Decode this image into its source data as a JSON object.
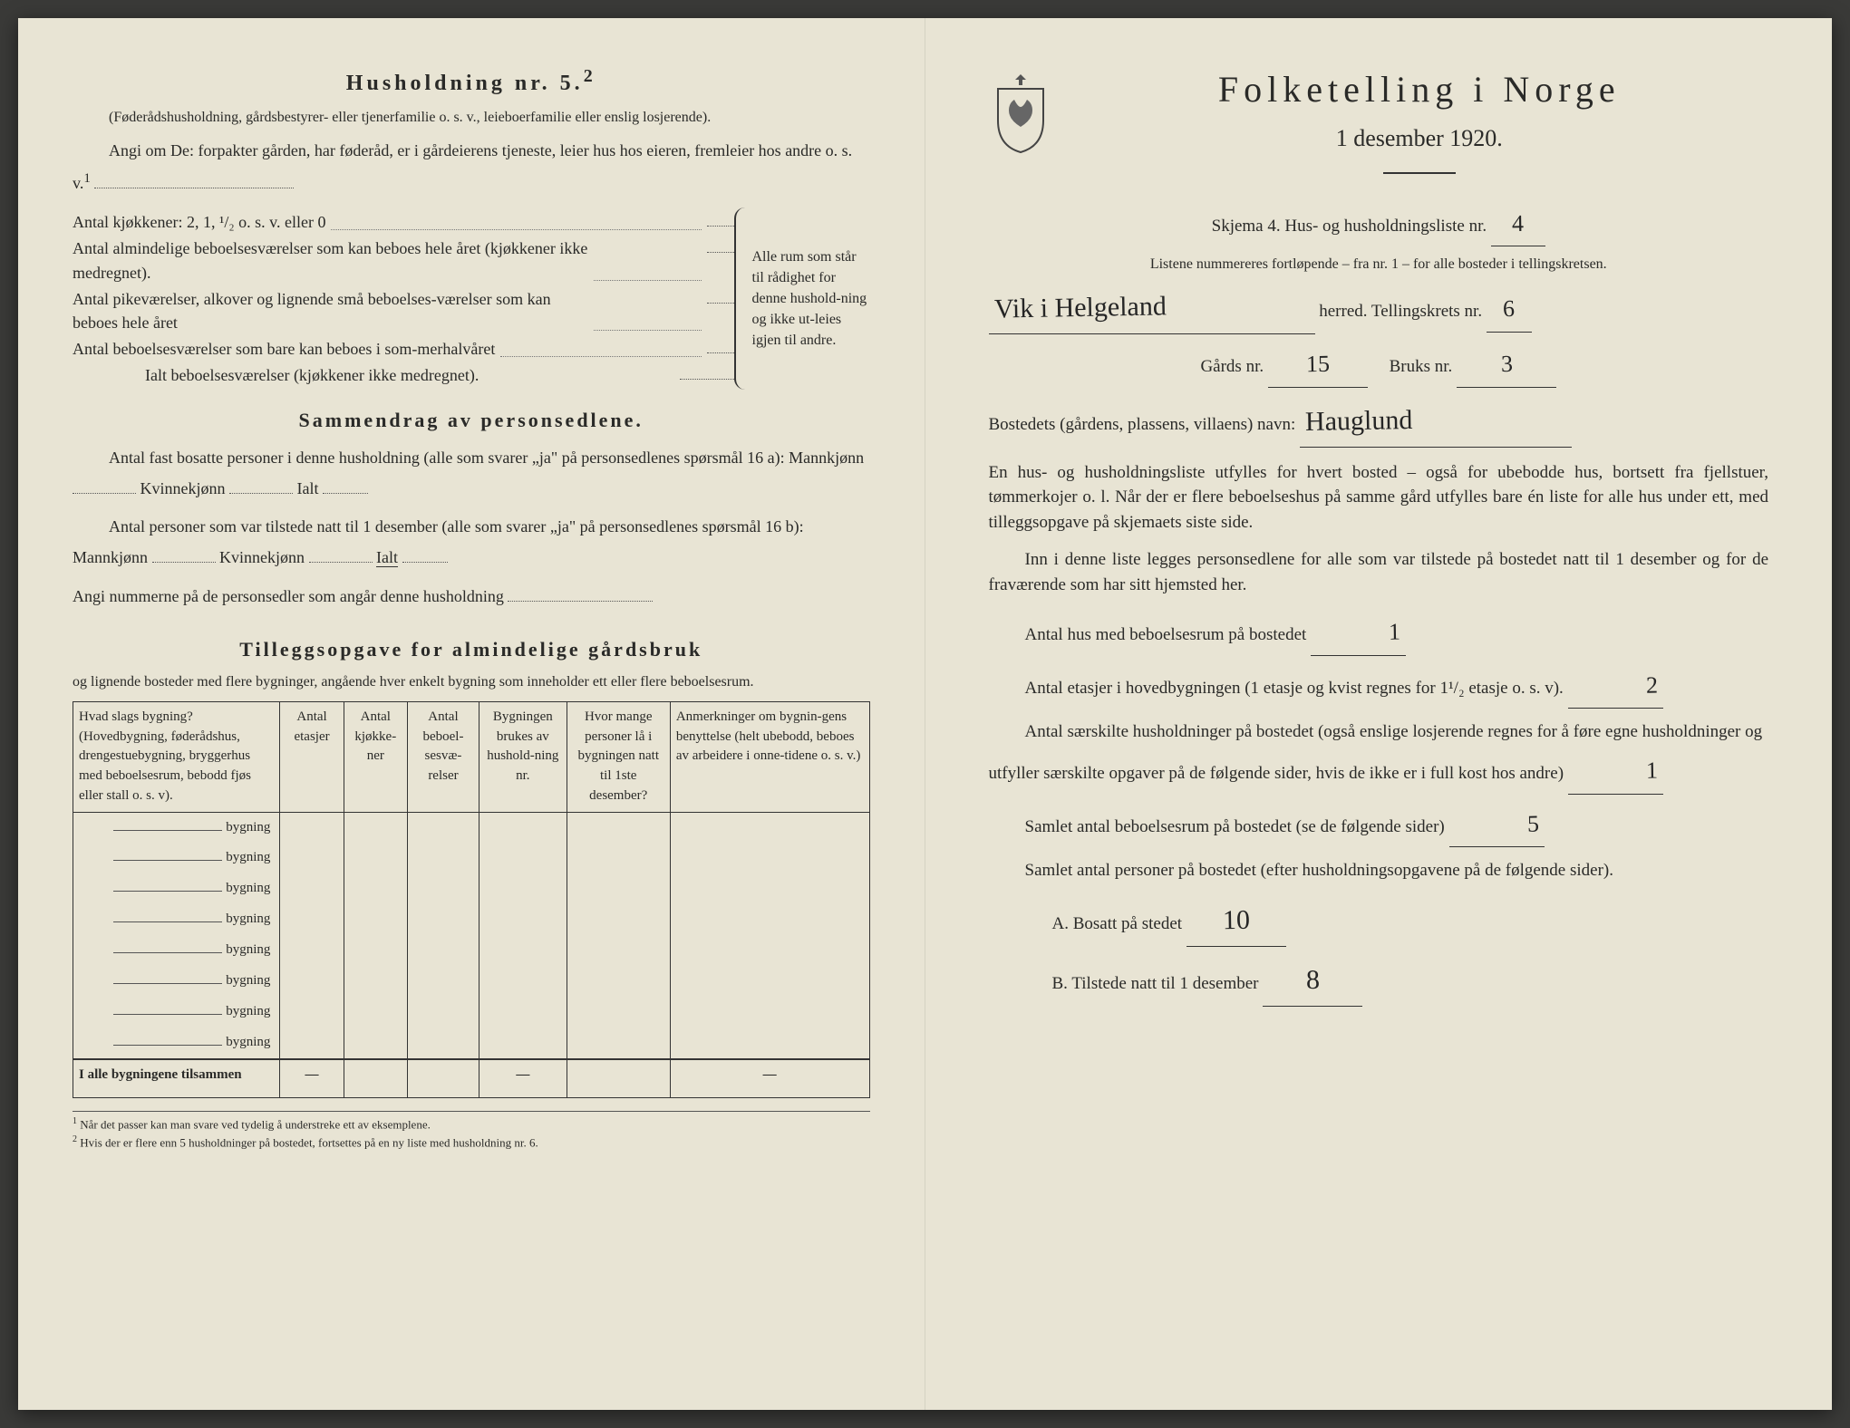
{
  "left": {
    "household_heading": "Husholdning nr. 5.",
    "household_sup": "2",
    "household_note": "(Føderådshusholdning, gårdsbestyrer- eller tjenerfamilie o. s. v., leieboerfamilie eller enslig losjerende).",
    "angi_line": "Angi om De: forpakter gården, har føderåd, er i gårdeierens tjeneste, leier hus hos eieren, fremleier hos andre o. s. v.",
    "angi_sup": "1",
    "brace_items": [
      "Antal kjøkkener: 2, 1, ¹/₂ o. s. v. eller 0",
      "Antal almindelige beboelsesværelser som kan beboes hele året (kjøkkener ikke medregnet).",
      "Antal pikeværelser, alkover og lignende små beboelses-værelser som kan beboes hele året",
      "Antal beboelsesværelser som bare kan beboes i som-merhalvåret",
      "Ialt beboelsesværelser (kjøkkener ikke medregnet)."
    ],
    "brace_right_text": "Alle rum som står til rådighet for denne hushold-ning og ikke ut-leies igjen til andre.",
    "sammendrag_title": "Sammendrag av personsedlene.",
    "sammendrag_l1": "Antal fast bosatte personer i denne husholdning (alle som svarer „ja\" på personsedlenes spørsmål 16 a): Mannkjønn",
    "sammendrag_kv": "Kvinnekjønn",
    "sammendrag_ialt": "Ialt",
    "sammendrag_l2": "Antal personer som var tilstede natt til 1 desember (alle som svarer „ja\" på personsedlenes spørsmål 16 b): Mannkjønn",
    "sammendrag_l3": "Angi nummerne på de personsedler som angår denne husholdning",
    "tillegg_title": "Tilleggsopgave for almindelige gårdsbruk",
    "tillegg_sub": "og lignende bosteder med flere bygninger, angående hver enkelt bygning som inneholder ett eller flere beboelsesrum.",
    "table": {
      "headers": [
        "Hvad slags bygning?\n(Hovedbygning, føderådshus, drengestuebygning, bryggerhus med beboelsesrum, bebodd fjøs eller stall o. s. v).",
        "Antal etasjer",
        "Antal kjøkke-ner",
        "Antal beboel-sesvæ-relser",
        "Bygningen brukes av hushold-ning nr.",
        "Hvor mange personer lå i bygningen natt til 1ste desember?",
        "Anmerkninger om bygnin-gens benyttelse (helt ubebodd, beboes av arbeidere i onne-tidene o. s. v.)"
      ],
      "row_label": "bygning",
      "row_count": 8,
      "total_label": "I alle bygningene tilsammen",
      "dash": "—"
    },
    "footnote1": "Når det passer kan man svare ved tydelig å understreke ett av eksemplene.",
    "footnote2": "Hvis der er flere enn 5 husholdninger på bostedet, fortsettes på en ny liste med husholdning nr. 6."
  },
  "right": {
    "main_title": "Folketelling i Norge",
    "date": "1 desember 1920.",
    "skjema_line": "Skjema 4.  Hus- og husholdningsliste nr.",
    "skjema_value": "4",
    "listene": "Listene nummereres fortløpende – fra nr. 1 – for alle bosteder i tellingskretsen.",
    "herred_hand": "Vik i Helgeland",
    "herred_label": "herred.   Tellingskrets nr.",
    "krets_value": "6",
    "gards_label": "Gårds nr.",
    "gards_value": "15",
    "bruks_label": "Bruks nr.",
    "bruks_value": "3",
    "bosted_label": "Bostedets (gårdens, plassens, villaens) navn:",
    "bosted_value": "Hauglund",
    "para1": "En hus- og husholdningsliste utfylles for hvert bosted – også for ubebodde hus, bortsett fra fjellstuer, tømmerkojer o. l.  Når der er flere beboelseshus på samme gård utfylles bare én liste for alle hus under ett, med tilleggsopgave på skjemaets siste side.",
    "para2": "Inn i denne liste legges personsedlene for alle som var tilstede på bostedet natt til 1 desember og for de fraværende som har sitt hjemsted her.",
    "q1_label": "Antal hus med beboelsesrum på bostedet",
    "q1_value": "1",
    "q2_label_a": "Antal etasjer i hovedbygningen (1 etasje og kvist regnes for 1¹/₂ etasje o. s. v).",
    "q2_value": "2",
    "q3_label": "Antal særskilte husholdninger på bostedet (også enslige losjerende regnes for å føre egne husholdninger og utfyller særskilte opgaver på de følgende sider, hvis de ikke er i full kost hos andre)",
    "q3_value": "1",
    "q4_label": "Samlet antal beboelsesrum på bostedet (se de følgende sider)",
    "q4_value": "5",
    "q5_label": "Samlet antal personer på bostedet (efter husholdningsopgavene på de følgende sider).",
    "qA_label": "A.  Bosatt på stedet",
    "qA_value": "10",
    "qB_label": "B.  Tilstede natt til 1 desember",
    "qB_value": "8"
  },
  "colors": {
    "paper": "#e8e4d4",
    "ink": "#2a2a28",
    "hand": "#252525"
  }
}
